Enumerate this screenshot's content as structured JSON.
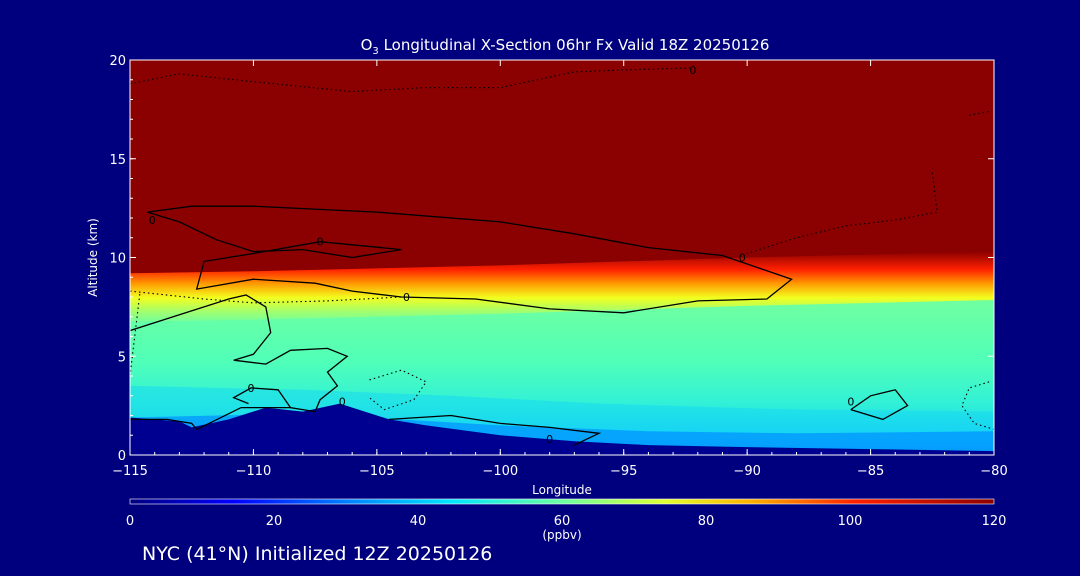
{
  "chart_data": {
    "type": "heatmap",
    "title": {
      "prefix": "O",
      "subscript": "3",
      "rest": " Longitudinal X-Section 06hr  Fx Valid 18Z 20250126"
    },
    "xlabel": "Longitude",
    "ylabel": "Altitude (km)",
    "xlim": [
      -115,
      -80
    ],
    "ylim": [
      0,
      20
    ],
    "xticks": [
      -115,
      -110,
      -105,
      -100,
      -95,
      -90,
      -85,
      -80
    ],
    "xtick_labels": [
      "−115",
      "−110",
      "−105",
      "−100",
      "−95",
      "−90",
      "−85",
      "−80"
    ],
    "yticks": [
      0,
      5,
      10,
      15,
      20
    ],
    "ytick_labels": [
      "0",
      "5",
      "10",
      "15",
      "20"
    ],
    "colorbar": {
      "ticks": [
        0,
        20,
        40,
        60,
        80,
        100,
        120
      ],
      "tick_labels": [
        "0",
        "20",
        "40",
        "60",
        "80",
        "100",
        "120"
      ],
      "units": "(ppbv)",
      "range": [
        0,
        120
      ]
    },
    "fields": {
      "lower_troposphere_base_ppbv": 48,
      "upper_stratosphere_ppbv": 120,
      "tropopause_height_km": [
        {
          "lon": -115,
          "alt": 8.9
        },
        {
          "lon": -110,
          "alt": 9.0
        },
        {
          "lon": -100,
          "alt": 9.3
        },
        {
          "lon": -90,
          "alt": 9.7
        },
        {
          "lon": -80,
          "alt": 10.0
        }
      ]
    },
    "contour_labels": [
      {
        "text": "0",
        "lon": -107.3,
        "alt": 10.8
      },
      {
        "text": "0",
        "lon": -103.8,
        "alt": 8.0
      },
      {
        "text": "0",
        "lon": -90.2,
        "alt": 10.0
      },
      {
        "text": "0",
        "lon": -110.1,
        "alt": 3.4
      },
      {
        "text": "0",
        "lon": -106.4,
        "alt": 2.7
      },
      {
        "text": "0",
        "lon": -98.0,
        "alt": 0.8
      },
      {
        "text": "0",
        "lon": -85.8,
        "alt": 2.7
      },
      {
        "text": "0",
        "lon": -92.2,
        "alt": 19.5
      },
      {
        "text": "0",
        "lon": -114.1,
        "alt": 11.9
      }
    ]
  },
  "footer": "NYC (41°N) Initialized 12Z 20250126",
  "colors": {
    "background": "#00007f",
    "foreground": "#ffffff",
    "contour": "#000000"
  }
}
